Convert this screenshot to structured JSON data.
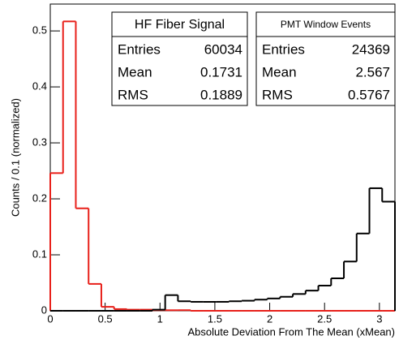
{
  "chart_data": {
    "type": "histogram",
    "ylabel": "Counts / 0.1 (normalized)",
    "xlabel": "Absolute Deviation From The Mean (xMean)",
    "bins": [
      0,
      0.1164,
      0.2327,
      0.3491,
      0.4654,
      0.5818,
      0.6981,
      0.8145,
      0.9308,
      1.0472,
      1.1636,
      1.2799,
      1.3963,
      1.5126,
      1.629,
      1.7453,
      1.8617,
      1.978,
      2.0944,
      2.2108,
      2.3271,
      2.4435,
      2.5598,
      2.6762,
      2.7925,
      2.9089,
      3.0252,
      3.1416
    ],
    "series": [
      {
        "name": "HF Fiber Signal",
        "color": "#e8201a",
        "values": [
          0.246,
          0.517,
          0.183,
          0.048,
          0.007,
          0.003,
          0.002,
          0.002,
          0.001,
          0.001,
          0.001,
          0,
          0,
          0,
          0,
          0,
          0,
          0,
          0,
          0,
          0,
          0,
          0,
          0,
          0,
          0,
          0
        ]
      },
      {
        "name": "PMT Window Events",
        "color": "#000000",
        "values": [
          0,
          0,
          0,
          0,
          0,
          0,
          0,
          0,
          0.002,
          0.028,
          0.017,
          0.016,
          0.016,
          0.016,
          0.017,
          0.018,
          0.02,
          0.022,
          0.025,
          0.03,
          0.036,
          0.045,
          0.058,
          0.088,
          0.138,
          0.219,
          0.195
        ]
      }
    ],
    "stats_boxes": [
      {
        "title": "HF Fiber Signal",
        "color": "#e8201a",
        "rows": [
          {
            "label": "Entries",
            "value": 60034
          },
          {
            "label": "Mean",
            "value": 0.1731
          },
          {
            "label": "RMS",
            "value": 0.1889
          }
        ]
      },
      {
        "title": "PMT Window Events",
        "color": "#000000",
        "rows": [
          {
            "label": "Entries",
            "value": 24369
          },
          {
            "label": "Mean",
            "value": 2.567
          },
          {
            "label": "RMS",
            "value": 0.5767
          }
        ]
      }
    ],
    "xlim": [
      0,
      3.1416
    ],
    "ylim": [
      0,
      0.548
    ],
    "xticks": [
      0,
      0.5,
      1,
      1.5,
      2,
      2.5,
      3
    ],
    "yticks": [
      0,
      0.1,
      0.2,
      0.3,
      0.4,
      0.5
    ]
  }
}
